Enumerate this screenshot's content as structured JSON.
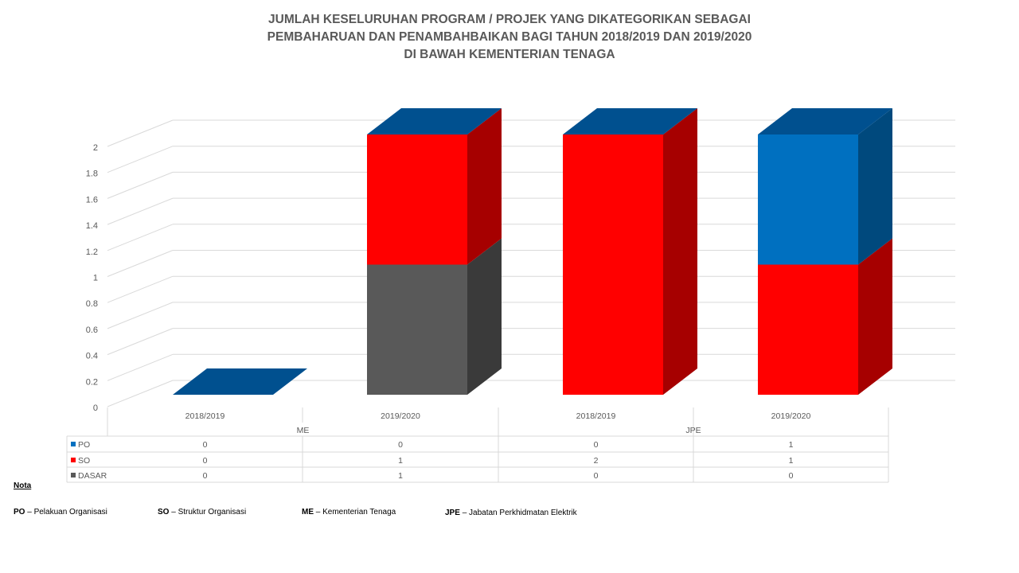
{
  "title": [
    "JUMLAH KESELURUHAN PROGRAM / PROJEK YANG DIKATEGORIKAN SEBAGAI",
    "PEMBAHARUAN DAN PENAMBAHBAIKAN BAGI TAHUN 2018/2019 DAN 2019/2020",
    "DI BAWAH KEMENTERIAN TENAGA"
  ],
  "chart_data": {
    "type": "bar",
    "stacked": true,
    "three_d": true,
    "groups": [
      "ME",
      "JPE"
    ],
    "categories": [
      "2018/2019",
      "2019/2020",
      "2018/2019",
      "2019/2020"
    ],
    "category_groups": [
      "ME",
      "ME",
      "JPE",
      "JPE"
    ],
    "series": [
      {
        "name": "PO",
        "values": [
          0,
          0,
          0,
          1
        ],
        "color": "#0070C0"
      },
      {
        "name": "SO",
        "values": [
          0,
          1,
          2,
          1
        ],
        "color": "#FF0000"
      },
      {
        "name": "DASAR",
        "values": [
          0,
          1,
          0,
          0
        ],
        "color": "#595959"
      }
    ],
    "stack_order": [
      "DASAR",
      "SO",
      "PO"
    ],
    "top_color": "#00508F",
    "ylim": [
      0,
      2
    ],
    "yticks": [
      "0",
      "0.2",
      "0.4",
      "0.6",
      "0.8",
      "1",
      "1.2",
      "1.4",
      "1.6",
      "1.8",
      "2"
    ],
    "grid": true,
    "legend": "data-table"
  },
  "nota": {
    "heading": "Nota",
    "items": [
      {
        "abbr": "PO",
        "text": "Pelakuan Organisasi"
      },
      {
        "abbr": "SO",
        "text": "Struktur Organisasi"
      },
      {
        "abbr": "ME",
        "text": "Kementerian Tenaga"
      },
      {
        "abbr": "JPE",
        "text": "Jabatan Perkhidmatan Elektrik"
      }
    ],
    "dash": "–"
  }
}
